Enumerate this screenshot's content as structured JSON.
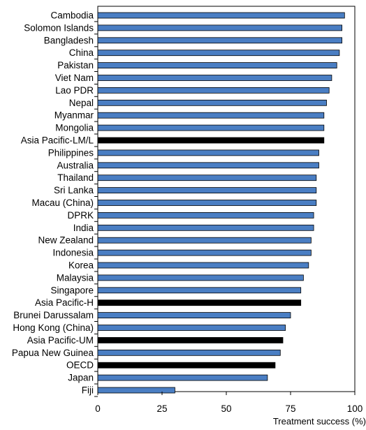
{
  "chart_data": {
    "type": "bar",
    "orientation": "horizontal",
    "xlabel": "Treatment success (%)",
    "xlim": [
      0,
      100
    ],
    "xticks": [
      0,
      25,
      50,
      75,
      100
    ],
    "grid": false,
    "colors": {
      "default": "#4a7ec3",
      "highlight": "#000000",
      "edge": "#000000"
    },
    "categories": [
      "Cambodia",
      "Solomon Islands",
      "Bangladesh",
      "China",
      "Pakistan",
      "Viet Nam",
      "Lao PDR",
      "Nepal",
      "Myanmar",
      "Mongolia",
      "Asia Pacific-LM/L",
      "Philippines",
      "Australia",
      "Thailand",
      "Sri Lanka",
      "Macau (China)",
      "DPRK",
      "India",
      "New Zealand",
      "Indonesia",
      "Korea",
      "Malaysia",
      "Singapore",
      "Asia Pacific-H",
      "Brunei Darussalam",
      "Hong Kong (China)",
      "Asia Pacific-UM",
      "Papua New Guinea",
      "OECD",
      "Japan",
      "Fiji"
    ],
    "values": [
      96,
      95,
      95,
      94,
      93,
      91,
      90,
      89,
      88,
      88,
      88,
      86,
      86,
      85,
      85,
      85,
      84,
      84,
      83,
      83,
      82,
      80,
      79,
      79,
      75,
      73,
      72,
      71,
      69,
      66,
      30
    ],
    "highlight": [
      "Asia Pacific-LM/L",
      "Asia Pacific-H",
      "Asia Pacific-UM",
      "OECD"
    ]
  }
}
